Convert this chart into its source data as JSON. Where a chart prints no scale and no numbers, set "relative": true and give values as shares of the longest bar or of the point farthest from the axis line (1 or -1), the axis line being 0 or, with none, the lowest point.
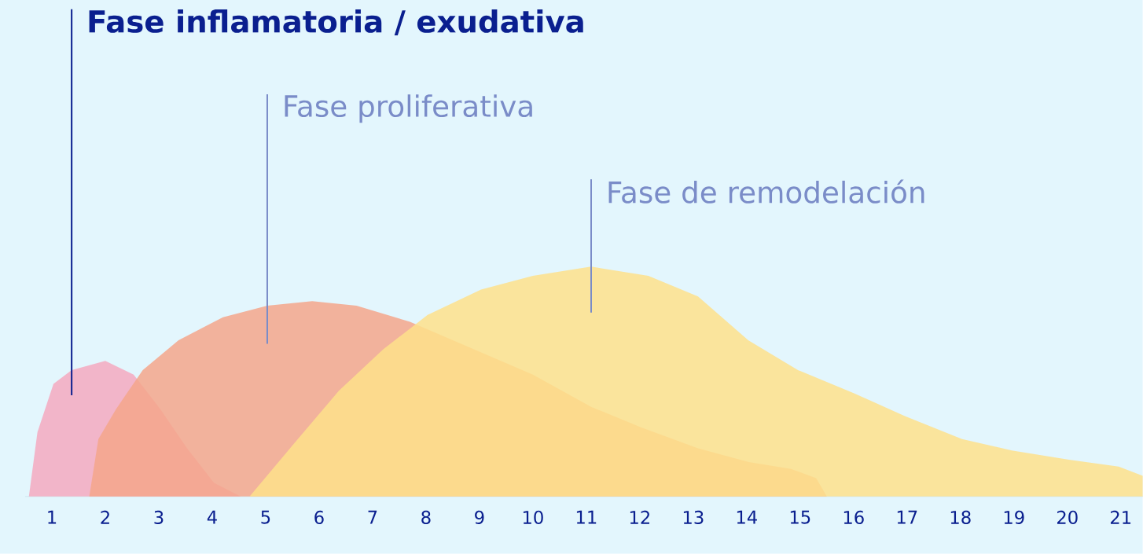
{
  "chart_data": {
    "type": "area",
    "relative": true,
    "xlim": [
      0.5,
      21.41
    ],
    "xticks": [
      1,
      2,
      3,
      4,
      5,
      6,
      7,
      8,
      9,
      10,
      11,
      12,
      13,
      14,
      15,
      16,
      17,
      18,
      19,
      20,
      21
    ],
    "series": [
      {
        "name": "Fase inflamatoria / exudativa",
        "color": "#f4a9c0",
        "x": [
          0.57,
          0.73,
          1.03,
          1.37,
          2.0,
          2.53,
          3.03,
          3.53,
          4.03,
          4.53
        ],
        "values": [
          0,
          0.28,
          0.49,
          0.55,
          0.59,
          0.53,
          0.38,
          0.21,
          0.06,
          0
        ]
      },
      {
        "name": "Fase proliferativa",
        "color": "#f5a68b",
        "x": [
          1.7,
          1.87,
          2.2,
          2.7,
          3.37,
          4.2,
          5.03,
          5.87,
          6.7,
          7.7,
          8.7,
          10.0,
          11.09,
          12.03,
          13.09,
          14.04,
          14.83,
          15.3,
          15.5
        ],
        "values": [
          0,
          0.25,
          0.38,
          0.55,
          0.68,
          0.78,
          0.83,
          0.85,
          0.83,
          0.76,
          0.66,
          0.53,
          0.39,
          0.3,
          0.21,
          0.15,
          0.12,
          0.08,
          0
        ]
      },
      {
        "name": "Fase de remodelación",
        "color": "#fee08b",
        "x": [
          4.7,
          5.53,
          6.37,
          7.2,
          8.03,
          9.03,
          10.0,
          11.09,
          12.16,
          13.09,
          14.03,
          14.96,
          16.0,
          16.96,
          18.03,
          18.96,
          20.03,
          20.96,
          21.41
        ],
        "values": [
          0,
          0.23,
          0.46,
          0.64,
          0.79,
          0.9,
          0.96,
          1.0,
          0.96,
          0.87,
          0.68,
          0.55,
          0.45,
          0.35,
          0.25,
          0.2,
          0.16,
          0.13,
          0.09
        ]
      }
    ]
  }
}
